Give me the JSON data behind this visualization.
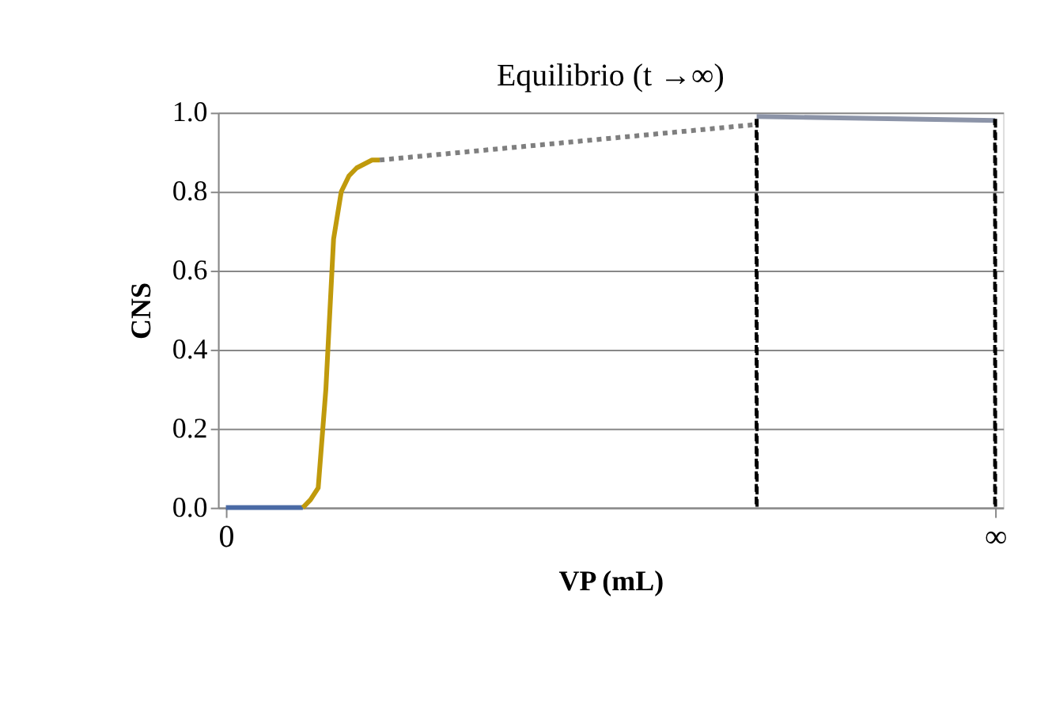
{
  "chart_data": {
    "type": "line",
    "title": "Equilibrio (t →∞)",
    "xlabel": "VP (mL)",
    "ylabel": "CNS",
    "categories": [
      "0",
      null,
      null,
      null,
      null,
      null,
      null,
      null,
      null,
      null,
      null,
      null,
      null,
      null,
      null,
      null,
      null,
      null,
      null,
      null,
      null,
      null,
      null,
      null,
      null,
      null,
      null,
      null,
      null,
      null,
      null,
      null,
      null,
      null,
      null,
      null,
      null,
      null,
      null,
      null,
      null,
      null,
      null,
      null,
      null,
      null,
      null,
      null,
      null,
      null,
      null,
      null,
      null,
      null,
      null,
      null,
      null,
      null,
      null,
      null,
      null,
      null,
      null,
      null,
      null,
      null,
      null,
      null,
      null,
      null,
      null,
      null,
      null,
      null,
      null,
      null,
      null,
      null,
      null,
      null,
      null,
      null,
      null,
      null,
      null,
      null,
      null,
      null,
      null,
      null,
      null,
      null,
      null,
      null,
      null,
      null,
      null,
      null,
      null,
      null,
      "∞"
    ],
    "ylim": [
      0,
      1
    ],
    "yticks": [
      {
        "value": 0,
        "label": "0.0"
      },
      {
        "value": 0.2,
        "label": "0.2"
      },
      {
        "value": 0.4,
        "label": "0.4"
      },
      {
        "value": 0.6,
        "label": "0.6"
      },
      {
        "value": 0.8,
        "label": "0.8"
      },
      {
        "value": 1,
        "label": "1.0"
      }
    ],
    "grid": "y",
    "series": [
      {
        "color": "#4a6aa5",
        "line_style": "solid",
        "values": [
          0,
          0,
          0,
          0,
          0,
          0,
          0,
          0,
          0,
          0,
          0,
          null,
          null,
          null,
          null,
          null,
          null,
          null,
          null,
          null,
          null,
          null,
          null,
          null,
          null,
          null,
          null,
          null,
          null,
          null,
          null,
          null,
          null,
          null,
          null,
          null,
          null,
          null,
          null,
          null,
          null,
          null,
          null,
          null,
          null,
          null,
          null,
          null,
          null,
          null,
          null,
          null,
          null,
          null,
          null,
          null,
          null,
          null,
          null,
          null,
          null,
          null,
          null,
          null,
          null,
          null,
          null,
          null,
          null,
          null,
          null,
          null,
          null,
          null,
          null,
          null,
          null,
          null,
          null,
          null,
          null,
          null,
          null,
          null,
          null,
          null,
          null,
          null,
          null,
          null,
          null,
          null,
          null,
          null,
          null,
          null,
          null,
          null,
          null,
          null,
          null
        ]
      },
      {
        "color": "#c09a0c",
        "line_style": "solid",
        "values": [
          null,
          null,
          null,
          null,
          null,
          null,
          null,
          null,
          null,
          null,
          0,
          0.02,
          0.05,
          0.3,
          0.68,
          0.8,
          0.84,
          0.86,
          0.87,
          0.88,
          0.88,
          null,
          null,
          null,
          null,
          null,
          null,
          null,
          null,
          null,
          null,
          null,
          null,
          null,
          null,
          null,
          null,
          null,
          null,
          null,
          null,
          null,
          null,
          null,
          null,
          null,
          null,
          null,
          null,
          null,
          null,
          null,
          null,
          null,
          null,
          null,
          null,
          null,
          null,
          null,
          null,
          null,
          null,
          null,
          null,
          null,
          null,
          null,
          null,
          null,
          null,
          null,
          null,
          null,
          null,
          null,
          null,
          null,
          null,
          null,
          null,
          null,
          null,
          null,
          null,
          null,
          null,
          null,
          null,
          null,
          null,
          null,
          null,
          null,
          null,
          null,
          null,
          null,
          null,
          null,
          null
        ]
      },
      {
        "color": "#7f7f7f",
        "line_style": "dotted",
        "values": [
          null,
          null,
          null,
          null,
          null,
          null,
          null,
          null,
          null,
          null,
          null,
          null,
          null,
          null,
          null,
          null,
          null,
          null,
          null,
          null,
          0.88,
          null,
          null,
          null,
          null,
          null,
          null,
          null,
          null,
          null,
          null,
          null,
          null,
          null,
          null,
          null,
          null,
          null,
          null,
          null,
          null,
          null,
          null,
          null,
          null,
          null,
          null,
          null,
          null,
          null,
          null,
          null,
          null,
          null,
          null,
          null,
          null,
          null,
          null,
          null,
          null,
          null,
          null,
          null,
          null,
          null,
          null,
          null,
          null,
          0.97,
          null,
          null,
          null,
          null,
          null,
          null,
          null,
          null,
          null,
          null,
          null,
          null,
          null,
          null,
          null,
          null,
          null,
          null,
          null,
          null,
          null,
          null,
          null,
          null,
          null,
          null,
          null,
          null,
          null,
          null,
          null
        ]
      },
      {
        "color": "#8c94a8",
        "line_style": "solid",
        "values": [
          null,
          null,
          null,
          null,
          null,
          null,
          null,
          null,
          null,
          null,
          null,
          null,
          null,
          null,
          null,
          null,
          null,
          null,
          null,
          null,
          null,
          null,
          null,
          null,
          null,
          null,
          null,
          null,
          null,
          null,
          null,
          null,
          null,
          null,
          null,
          null,
          null,
          null,
          null,
          null,
          null,
          null,
          null,
          null,
          null,
          null,
          null,
          null,
          null,
          null,
          null,
          null,
          null,
          null,
          null,
          null,
          null,
          null,
          null,
          null,
          null,
          null,
          null,
          null,
          null,
          null,
          null,
          null,
          null,
          0.99,
          null,
          null,
          null,
          null,
          null,
          null,
          null,
          null,
          null,
          null,
          null,
          null,
          null,
          null,
          null,
          null,
          null,
          null,
          null,
          null,
          null,
          null,
          null,
          null,
          null,
          null,
          null,
          null,
          null,
          null,
          0.98
        ]
      },
      {
        "type": "bar",
        "color": "#000000",
        "line_style": "dashed",
        "values": [
          null,
          null,
          null,
          null,
          null,
          null,
          null,
          null,
          null,
          null,
          null,
          null,
          null,
          null,
          null,
          null,
          null,
          null,
          null,
          null,
          null,
          null,
          null,
          null,
          null,
          null,
          null,
          null,
          null,
          null,
          null,
          null,
          null,
          null,
          null,
          null,
          null,
          null,
          null,
          null,
          null,
          null,
          null,
          null,
          null,
          null,
          null,
          null,
          null,
          null,
          null,
          null,
          null,
          null,
          null,
          null,
          null,
          null,
          null,
          null,
          null,
          null,
          null,
          null,
          null,
          null,
          null,
          null,
          null,
          0.98,
          null,
          null,
          null,
          null,
          null,
          null,
          null,
          null,
          null,
          null,
          null,
          null,
          null,
          null,
          null,
          null,
          null,
          null,
          null,
          null,
          null,
          null,
          null,
          null,
          null,
          null,
          null,
          null,
          null,
          null,
          0.98
        ]
      }
    ]
  }
}
